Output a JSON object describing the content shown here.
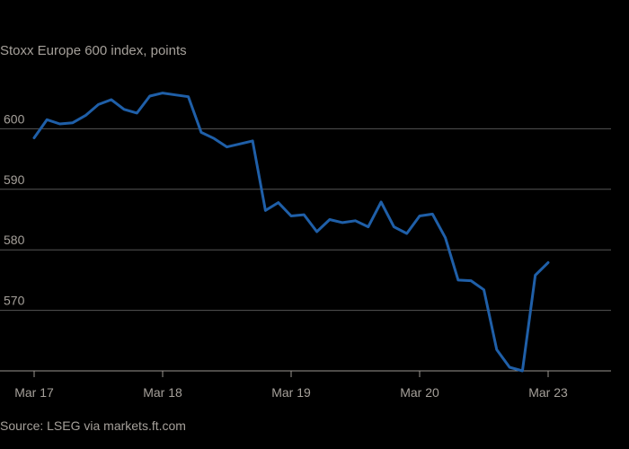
{
  "chart_data": {
    "type": "line",
    "title": "Stoxx Europe 600 index, points",
    "source": "Source: LSEG via markets.ft.com",
    "xlabel": "",
    "ylabel": "",
    "ylim": [
      560,
      610
    ],
    "yticks": [
      570,
      580,
      590,
      600
    ],
    "x_ticks": [
      {
        "label": "Mar 17",
        "index": 0
      },
      {
        "label": "Mar 18",
        "index": 10
      },
      {
        "label": "Mar 19",
        "index": 20
      },
      {
        "label": "Mar 20",
        "index": 30
      },
      {
        "label": "Mar 23",
        "index": 40
      }
    ],
    "x_count": 45,
    "colors": {
      "line": "#1f5fa8",
      "grid": "#555555",
      "text": "#a5a09a"
    },
    "series": [
      {
        "name": "Stoxx Europe 600",
        "points": [
          [
            0,
            598.5
          ],
          [
            1,
            601.5
          ],
          [
            2,
            600.8
          ],
          [
            3,
            601.0
          ],
          [
            4,
            602.2
          ],
          [
            5,
            604.0
          ],
          [
            6,
            604.8
          ],
          [
            7,
            603.2
          ],
          [
            8,
            602.6
          ],
          [
            9,
            605.4
          ],
          [
            10,
            605.9
          ],
          [
            11,
            605.6
          ],
          [
            12,
            605.3
          ],
          [
            13,
            599.4
          ],
          [
            14,
            598.4
          ],
          [
            15,
            597.0
          ],
          [
            16,
            597.5
          ],
          [
            17,
            598.0
          ],
          [
            18,
            586.5
          ],
          [
            19,
            587.8
          ],
          [
            20,
            585.6
          ],
          [
            21,
            585.8
          ],
          [
            22,
            583.0
          ],
          [
            23,
            585.0
          ],
          [
            24,
            584.5
          ],
          [
            25,
            584.8
          ],
          [
            26,
            583.8
          ],
          [
            27,
            587.9
          ],
          [
            28,
            583.8
          ],
          [
            29,
            582.7
          ],
          [
            30,
            585.6
          ],
          [
            31,
            585.9
          ],
          [
            32,
            582.0
          ],
          [
            33,
            575.0
          ],
          [
            34,
            574.9
          ],
          [
            35,
            573.4
          ],
          [
            36,
            563.5
          ],
          [
            37,
            560.6
          ],
          [
            38,
            560.0
          ],
          [
            39,
            575.8
          ],
          [
            40,
            577.9
          ]
        ]
      }
    ]
  }
}
